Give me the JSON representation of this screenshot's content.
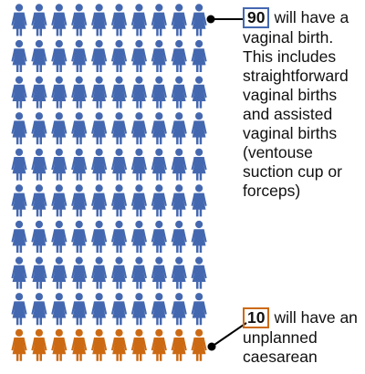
{
  "chart_data": {
    "type": "pictogram",
    "total": 100,
    "columns": 10,
    "groups": [
      {
        "count": 90,
        "count_label": "90",
        "color": "#4468b0",
        "label": "will have a vaginal birth. This includes straightforward vaginal births and assisted vaginal births (ventouse suction cup or forceps)"
      },
      {
        "count": 10,
        "count_label": "10",
        "color": "#cc6a14",
        "label": "will have an unplanned caesarean"
      }
    ]
  }
}
